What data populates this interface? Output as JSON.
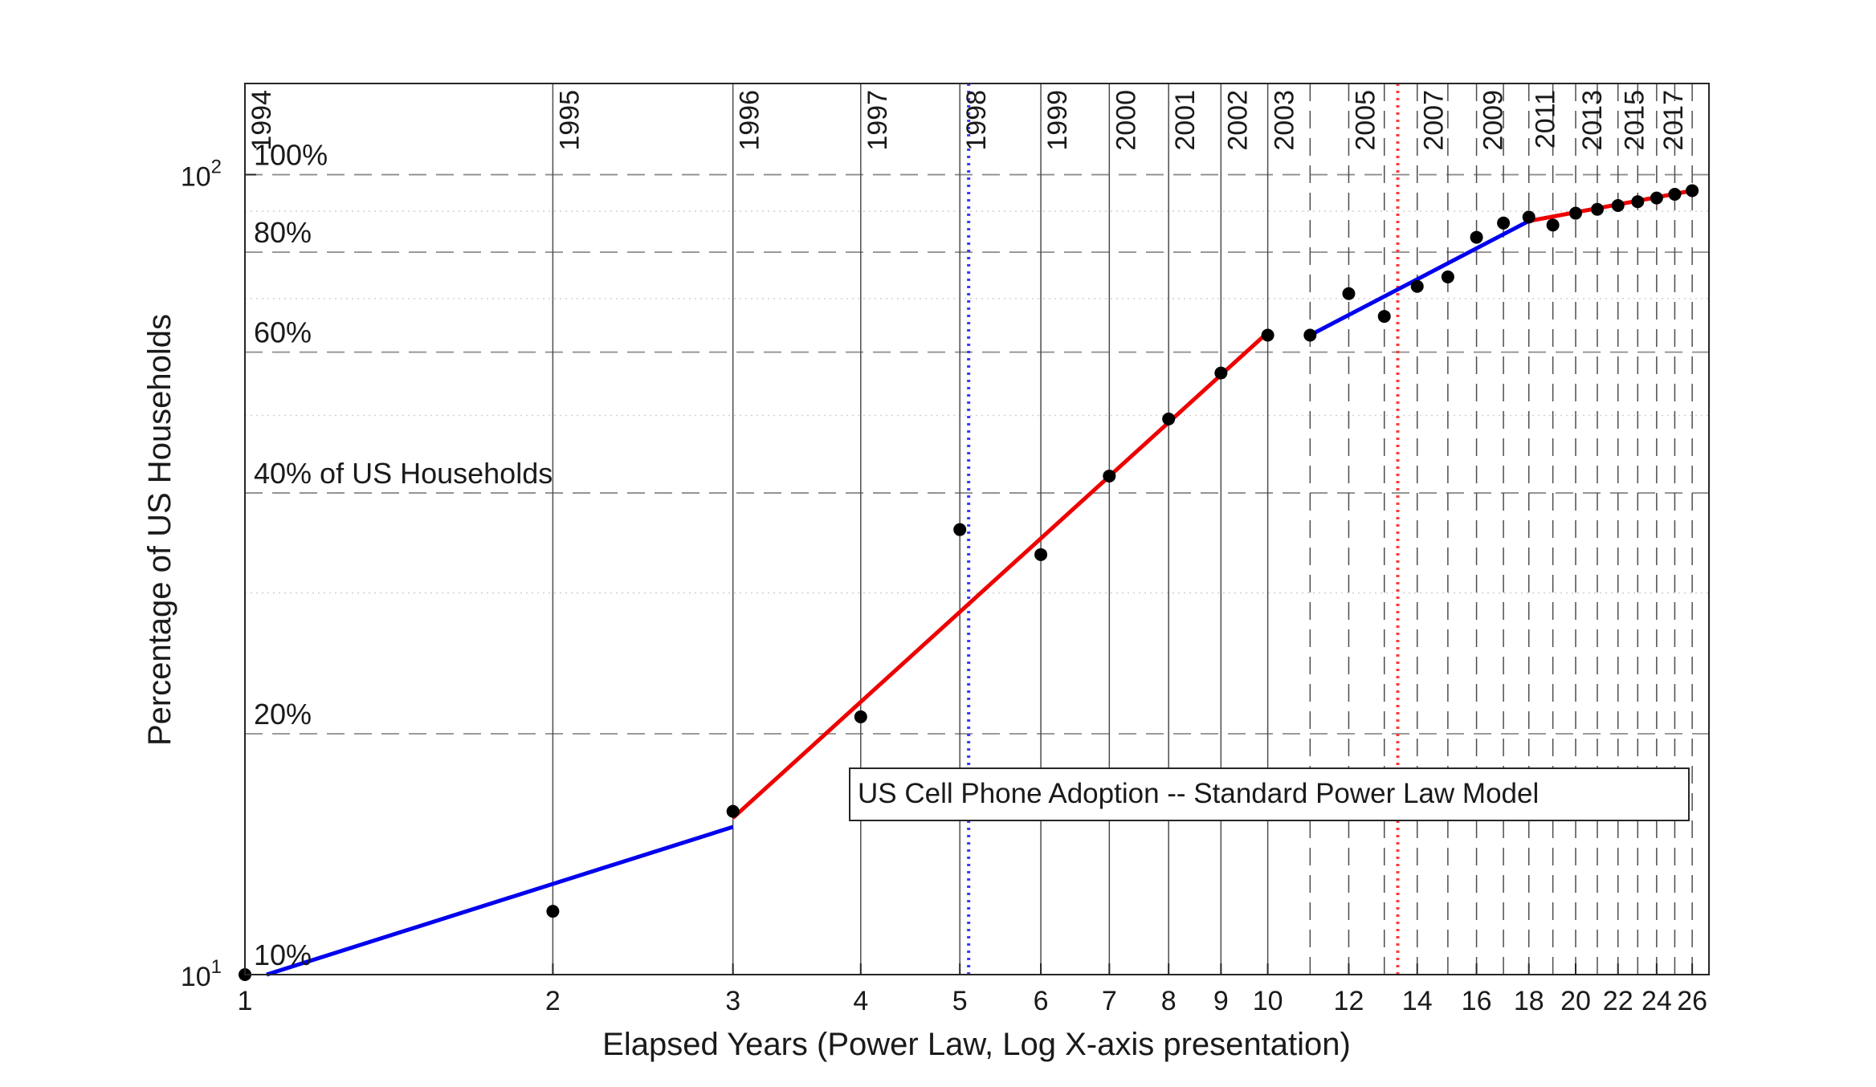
{
  "chart_data": {
    "type": "line",
    "xscale": "log",
    "yscale": "log",
    "xlim": [
      1,
      27
    ],
    "ylim": [
      10,
      130
    ],
    "xlabel": "Elapsed Years (Power Law, Log X-axis presentation)",
    "ylabel": "Percentage of US Households",
    "legend_text": "US Cell Phone Adoption -- Standard Power Law Model",
    "x_tick_values": [
      1,
      2,
      3,
      4,
      5,
      6,
      7,
      8,
      9,
      10,
      12,
      14,
      16,
      18,
      20,
      22,
      24,
      26
    ],
    "x_tick_labels": [
      "1",
      "2",
      "3",
      "4",
      "5",
      "6",
      "7",
      "8",
      "9",
      "10",
      "12",
      "14",
      "16",
      "18",
      "20",
      "22",
      "24",
      "26"
    ],
    "y_ticks": [
      {
        "value": 10,
        "base": "10",
        "exp": "1"
      },
      {
        "value": 100,
        "base": "10",
        "exp": "2"
      }
    ],
    "percent_gridlines": [
      {
        "value": 10,
        "label": "10%"
      },
      {
        "value": 20,
        "label": "20%"
      },
      {
        "value": 40,
        "label": "40% of US Households"
      },
      {
        "value": 60,
        "label": "60%"
      },
      {
        "value": 80,
        "label": "80%"
      },
      {
        "value": 100,
        "label": "100%"
      }
    ],
    "minor_y_gridlines": [
      30,
      50,
      70,
      90
    ],
    "year_markers": [
      {
        "x": 1,
        "label": "1994",
        "style": "solid"
      },
      {
        "x": 2,
        "label": "1995",
        "style": "solid"
      },
      {
        "x": 3,
        "label": "1996",
        "style": "solid"
      },
      {
        "x": 4,
        "label": "1997",
        "style": "solid"
      },
      {
        "x": 5,
        "label": "1998",
        "style": "solid"
      },
      {
        "x": 6,
        "label": "1999",
        "style": "solid"
      },
      {
        "x": 7,
        "label": "2000",
        "style": "solid"
      },
      {
        "x": 8,
        "label": "2001",
        "style": "solid"
      },
      {
        "x": 9,
        "label": "2002",
        "style": "solid"
      },
      {
        "x": 10,
        "label": "2003",
        "style": "solid"
      },
      {
        "x": 11,
        "label": "",
        "style": "dashed"
      },
      {
        "x": 12,
        "label": "2005",
        "style": "dashed"
      },
      {
        "x": 13,
        "label": "",
        "style": "dashed"
      },
      {
        "x": 14,
        "label": "2007",
        "style": "dashed"
      },
      {
        "x": 15,
        "label": "",
        "style": "dashed"
      },
      {
        "x": 16,
        "label": "2009",
        "style": "dashed"
      },
      {
        "x": 17,
        "label": "",
        "style": "dashed"
      },
      {
        "x": 18,
        "label": "2011",
        "style": "dashed"
      },
      {
        "x": 19,
        "label": "",
        "style": "dashed"
      },
      {
        "x": 20,
        "label": "2013",
        "style": "dashed"
      },
      {
        "x": 21,
        "label": "",
        "style": "dashed"
      },
      {
        "x": 22,
        "label": "2015",
        "style": "dashed"
      },
      {
        "x": 23,
        "label": "",
        "style": "dashed"
      },
      {
        "x": 24,
        "label": "2017",
        "style": "dashed"
      },
      {
        "x": 25,
        "label": "",
        "style": "dashed"
      },
      {
        "x": 26,
        "label": "",
        "style": "dashed"
      }
    ],
    "vertical_markers": [
      {
        "x": 5.1,
        "color": "#3a3aff",
        "style": "dotted"
      },
      {
        "x": 13.4,
        "color": "#ff3a3a",
        "style": "dotted"
      }
    ],
    "data_points": [
      {
        "x": 1,
        "y": 10
      },
      {
        "x": 2,
        "y": 12
      },
      {
        "x": 3,
        "y": 16
      },
      {
        "x": 4,
        "y": 21
      },
      {
        "x": 5,
        "y": 36
      },
      {
        "x": 6,
        "y": 33.5
      },
      {
        "x": 7,
        "y": 42
      },
      {
        "x": 8,
        "y": 49.5
      },
      {
        "x": 9,
        "y": 56.5
      },
      {
        "x": 10,
        "y": 63
      },
      {
        "x": 11,
        "y": 63
      },
      {
        "x": 12,
        "y": 71
      },
      {
        "x": 13,
        "y": 66.5
      },
      {
        "x": 14,
        "y": 72.5
      },
      {
        "x": 15,
        "y": 74.5
      },
      {
        "x": 16,
        "y": 83.5
      },
      {
        "x": 17,
        "y": 87
      },
      {
        "x": 18,
        "y": 88.5
      },
      {
        "x": 19,
        "y": 86.5
      },
      {
        "x": 20,
        "y": 89.5
      },
      {
        "x": 21,
        "y": 90.5
      },
      {
        "x": 22,
        "y": 91.5
      },
      {
        "x": 23,
        "y": 92.5
      },
      {
        "x": 24,
        "y": 93.5
      },
      {
        "x": 25,
        "y": 94.5
      },
      {
        "x": 26,
        "y": 95.5
      }
    ],
    "fit_segments": [
      {
        "color": "#0000ee",
        "points": [
          [
            1.05,
            10
          ],
          [
            3,
            15.3
          ]
        ]
      },
      {
        "color": "#ee0000",
        "points": [
          [
            3,
            15.7
          ],
          [
            10,
            63.5
          ]
        ]
      },
      {
        "color": "#0000ee",
        "points": [
          [
            11,
            63
          ],
          [
            18,
            87.5
          ]
        ]
      },
      {
        "color": "#ee0000",
        "points": [
          [
            18,
            87.5
          ],
          [
            26,
            95.5
          ]
        ]
      }
    ]
  }
}
